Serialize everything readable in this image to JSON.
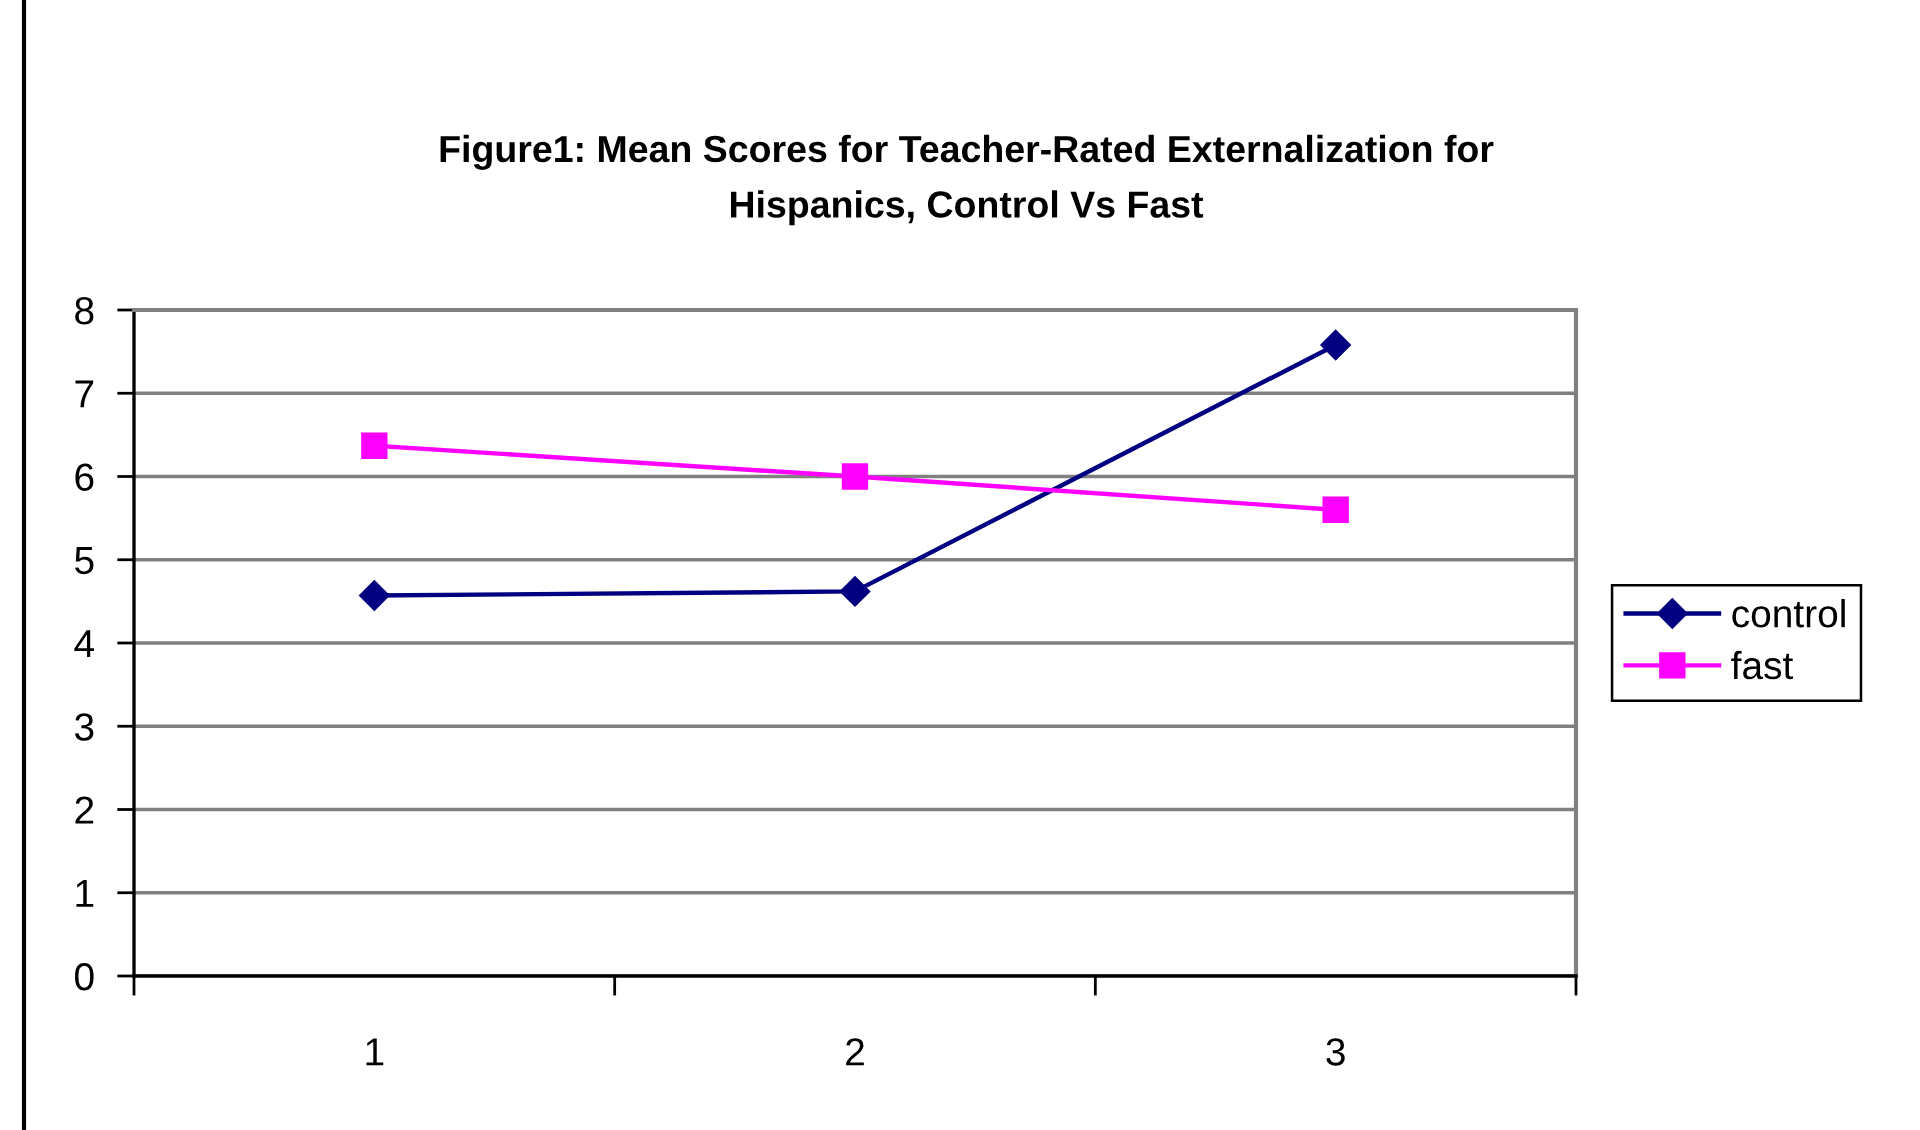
{
  "chart_data": {
    "type": "line",
    "title": "Figure1: Mean Scores for Teacher-Rated Externalization for\nHispanics, Control Vs Fast",
    "categories": [
      "1",
      "2",
      "3"
    ],
    "series": [
      {
        "name": "control",
        "color": "#000080",
        "marker": "diamond",
        "values": [
          4.57,
          4.62,
          7.58
        ]
      },
      {
        "name": "fast",
        "color": "#ff00ff",
        "marker": "square",
        "values": [
          6.37,
          6.0,
          5.6
        ]
      }
    ],
    "ylim": [
      0,
      8
    ],
    "yticks": [
      0,
      1,
      2,
      3,
      4,
      5,
      6,
      7,
      8
    ],
    "grid": "y",
    "legend": "right",
    "line_style": "solid"
  }
}
